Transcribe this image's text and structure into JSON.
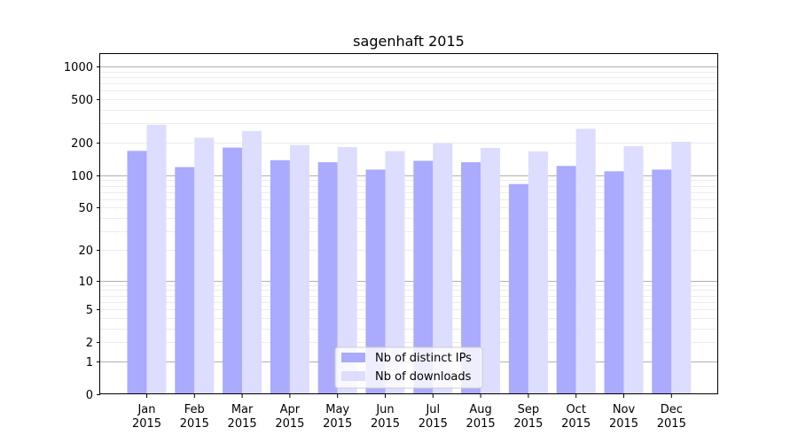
{
  "chart_data": {
    "type": "bar",
    "title": "sagenhaft 2015",
    "xlabel": "",
    "ylabel": "",
    "y_scale": "log1p",
    "ylim": [
      0,
      1300
    ],
    "y_ticks": [
      0,
      1,
      2,
      5,
      10,
      20,
      50,
      100,
      200,
      500,
      1000
    ],
    "grid": true,
    "legend_position": "lower-center",
    "categories": [
      [
        "Jan",
        "2015"
      ],
      [
        "Feb",
        "2015"
      ],
      [
        "Mar",
        "2015"
      ],
      [
        "Apr",
        "2015"
      ],
      [
        "May",
        "2015"
      ],
      [
        "Jun",
        "2015"
      ],
      [
        "Jul",
        "2015"
      ],
      [
        "Aug",
        "2015"
      ],
      [
        "Sep",
        "2015"
      ],
      [
        "Oct",
        "2015"
      ],
      [
        "Nov",
        "2015"
      ],
      [
        "Dec",
        "2015"
      ]
    ],
    "series": [
      {
        "name": "Nb of distinct IPs",
        "color": "#aaaaff",
        "values": [
          168,
          119,
          180,
          138,
          132,
          113,
          136,
          132,
          83,
          122,
          109,
          113
        ]
      },
      {
        "name": "Nb of downloads",
        "color": "#ddddff",
        "values": [
          292,
          222,
          256,
          190,
          182,
          167,
          197,
          179,
          166,
          268,
          186,
          204
        ]
      }
    ]
  }
}
